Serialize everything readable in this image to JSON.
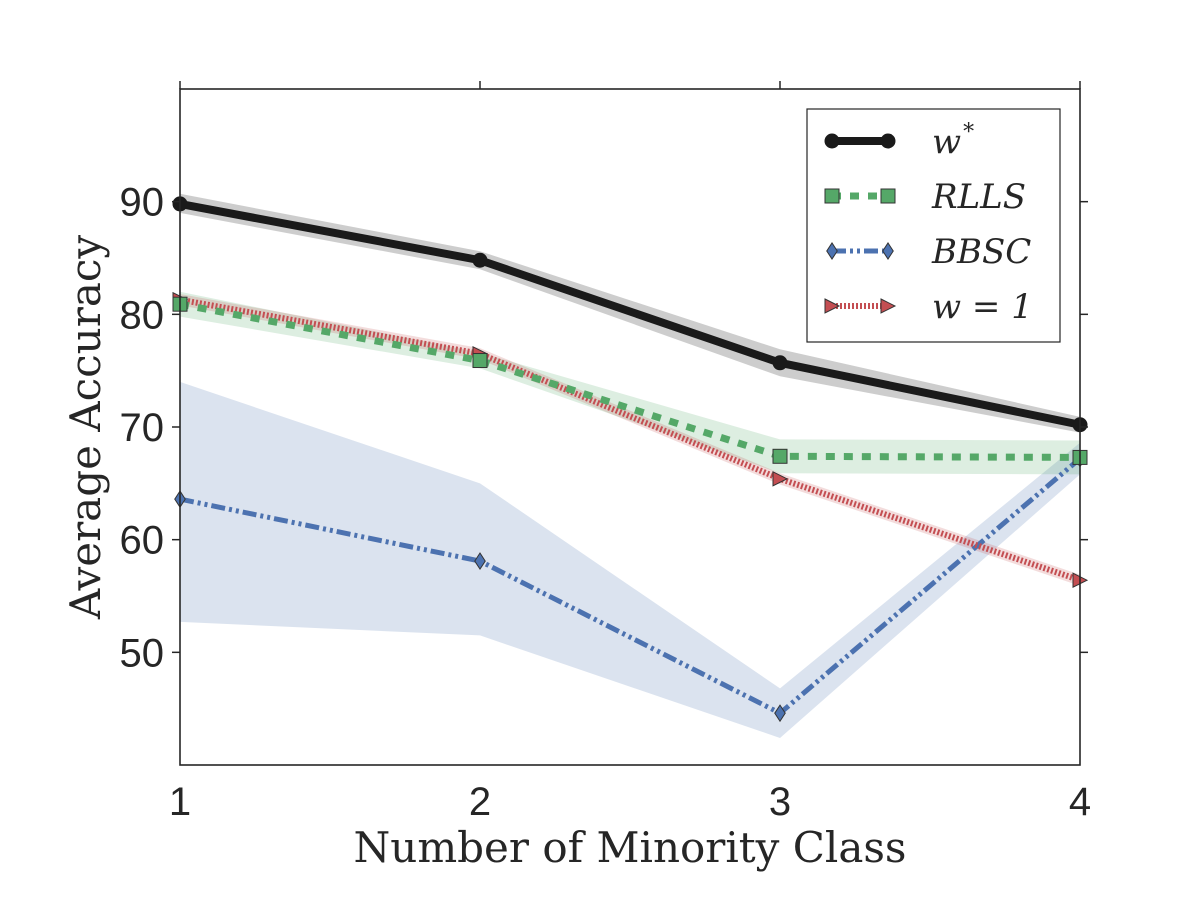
{
  "chart_data": {
    "type": "line",
    "xlabel": "Number of Minority Class",
    "ylabel": "Average Accuracy",
    "x": [
      1,
      2,
      3,
      4
    ],
    "xlim": [
      1,
      4
    ],
    "ylim": [
      40,
      100
    ],
    "xticks": [
      "1",
      "2",
      "3",
      "4"
    ],
    "yticks": [
      50,
      60,
      70,
      80,
      90
    ],
    "grid": false,
    "legend_position": "top-right",
    "series": [
      {
        "key": "wstar",
        "name": "w",
        "name_superscript": "*",
        "color": "#1a1a1a",
        "style": "solid",
        "marker": "circle",
        "values": [
          89.8,
          84.8,
          75.7,
          70.2
        ],
        "lower": [
          89.0,
          84.0,
          74.5,
          69.5
        ],
        "upper": [
          90.7,
          85.6,
          76.9,
          70.9
        ]
      },
      {
        "key": "rlls",
        "name": "RLLS",
        "color": "#55a868",
        "style": "dotted",
        "marker": "square",
        "values": [
          80.9,
          75.9,
          67.4,
          67.3
        ],
        "lower": [
          79.8,
          75.2,
          65.9,
          65.8
        ],
        "upper": [
          82.0,
          76.6,
          68.9,
          68.8
        ]
      },
      {
        "key": "bbsc",
        "name": "BBSC",
        "color": "#4c72b0",
        "style": "dashdot",
        "marker": "diamond",
        "values": [
          63.6,
          58.1,
          44.6,
          67.2
        ],
        "lower": [
          52.7,
          51.5,
          42.4,
          65.8
        ],
        "upper": [
          74.0,
          65.0,
          46.8,
          68.6
        ]
      },
      {
        "key": "w1",
        "name": "w = 1",
        "color": "#c44e52",
        "style": "hatched",
        "marker": "triangle-right",
        "values": [
          81.3,
          76.5,
          65.4,
          56.4
        ],
        "lower": [
          80.8,
          76.0,
          64.9,
          55.9
        ],
        "upper": [
          81.8,
          77.0,
          65.9,
          56.9
        ]
      }
    ]
  }
}
